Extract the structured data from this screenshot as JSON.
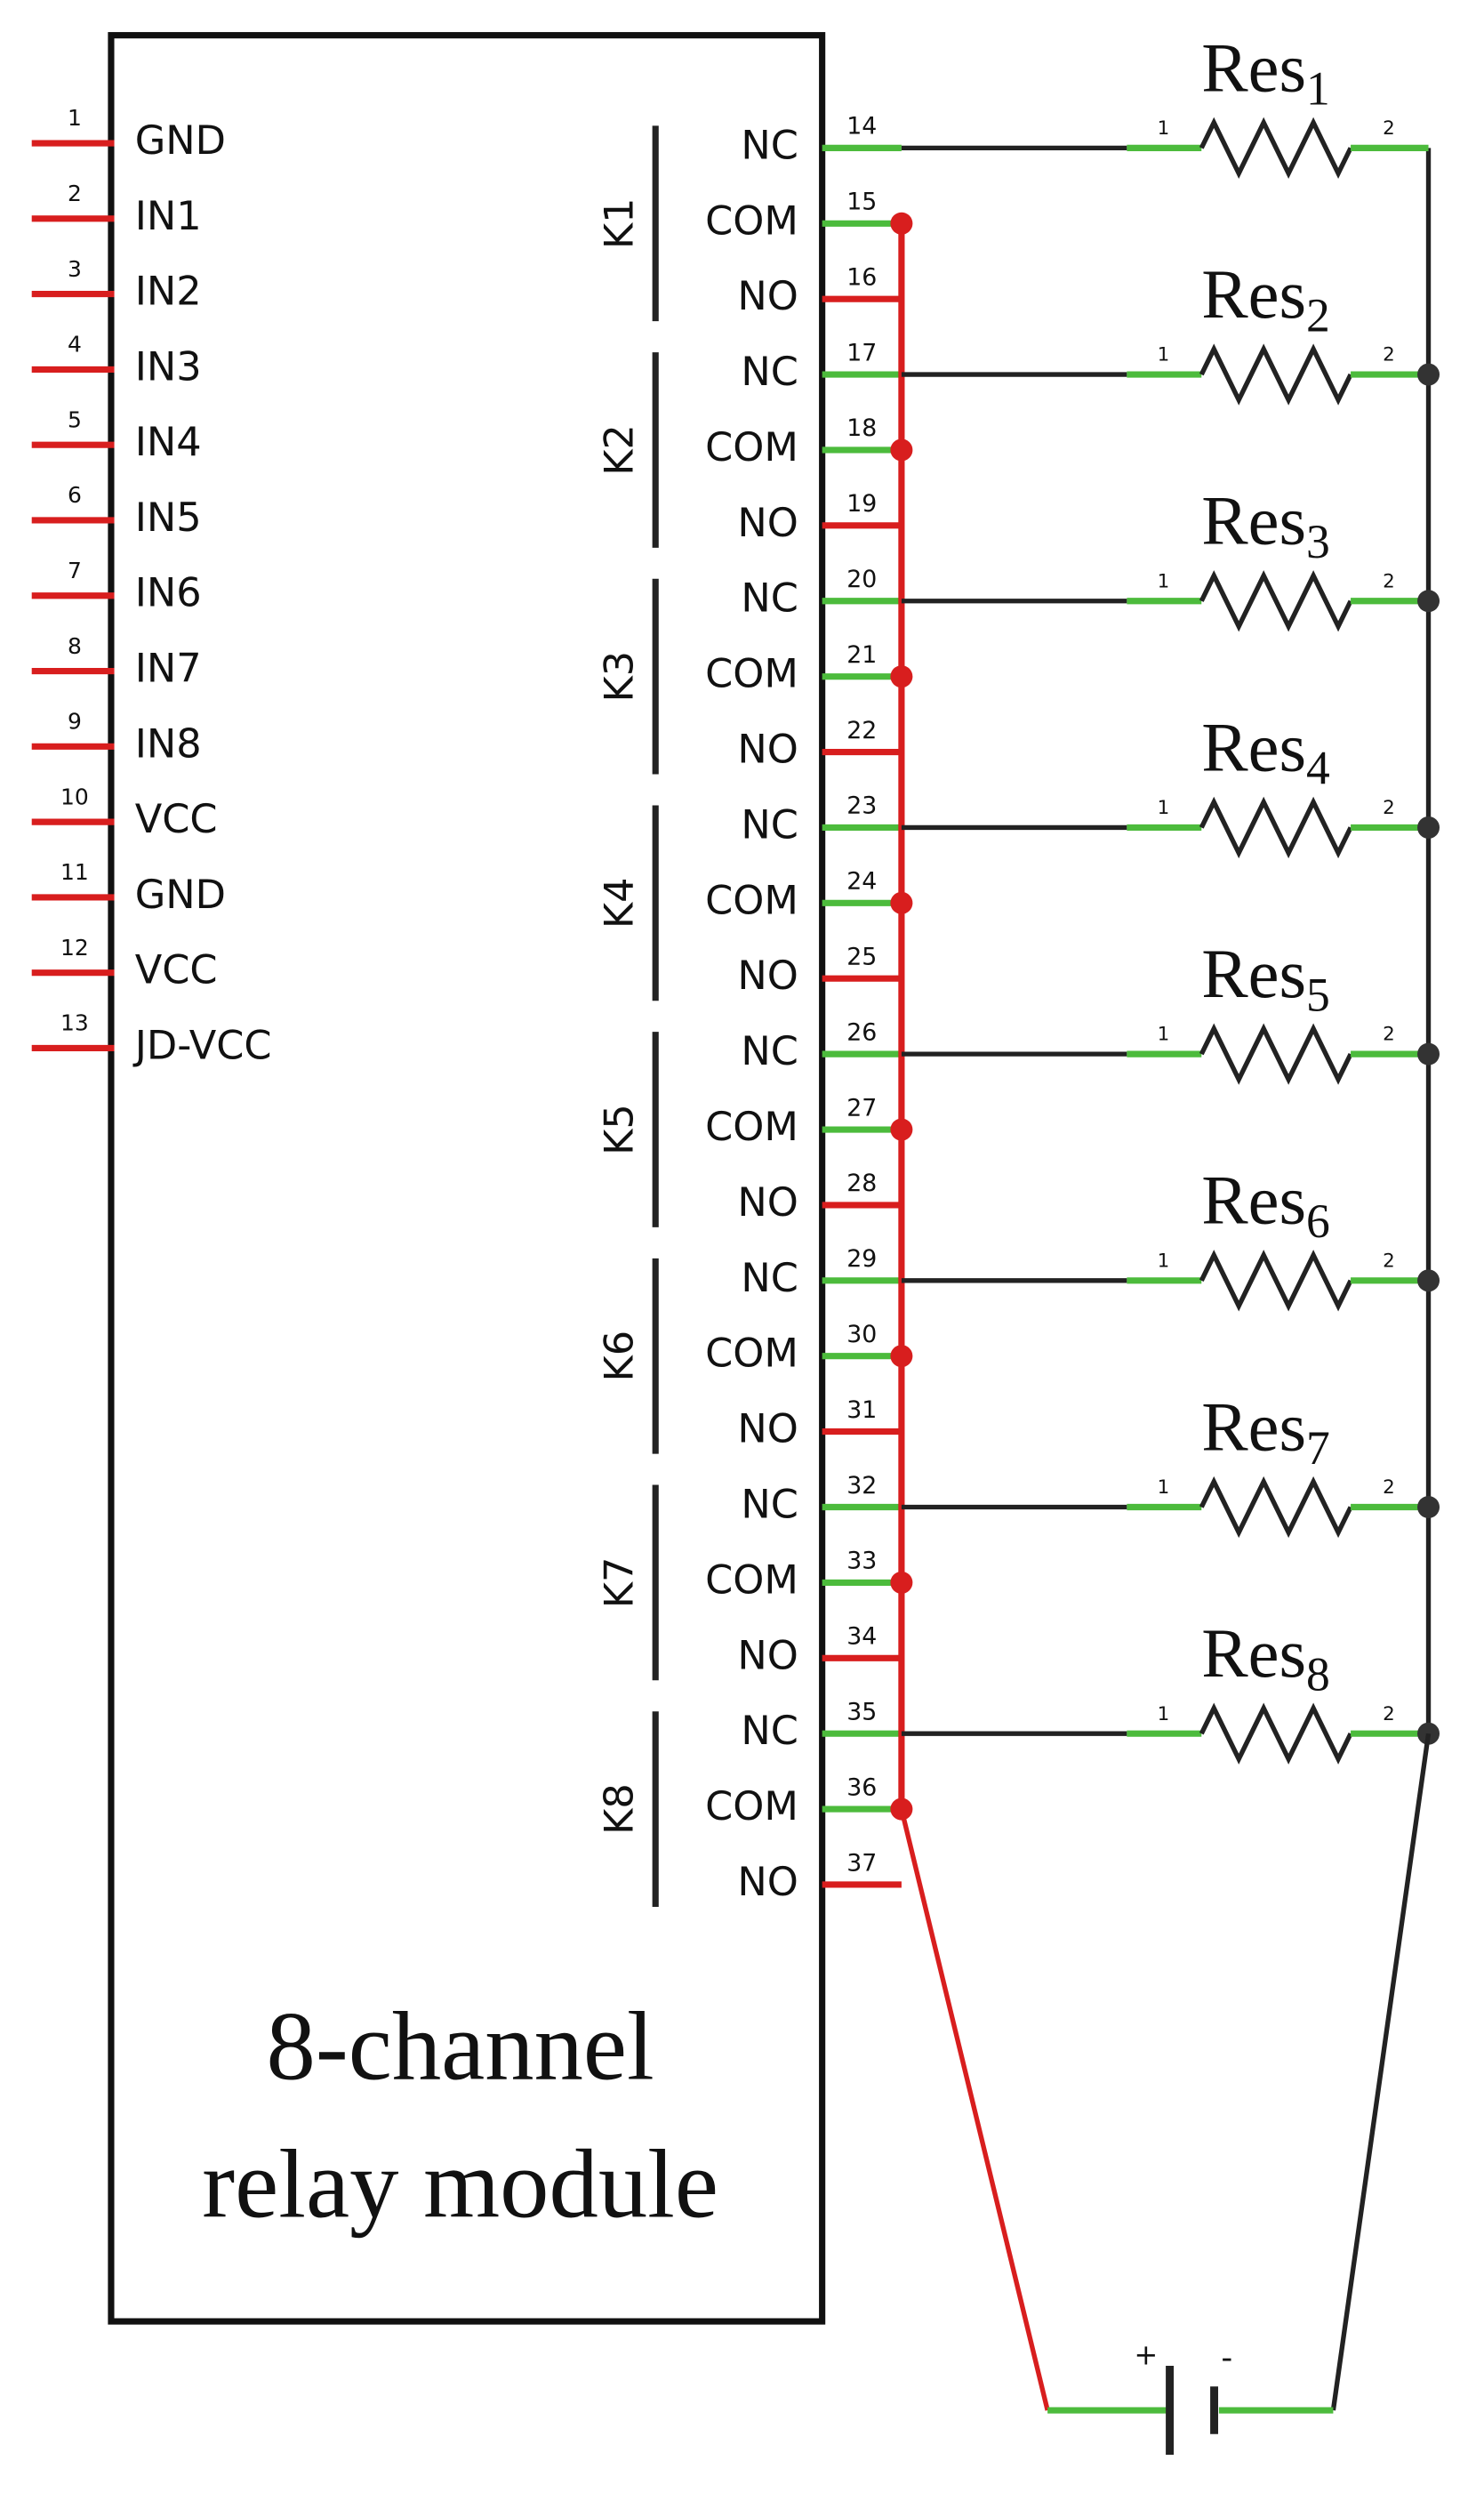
{
  "module": {
    "title_lines": [
      "8-channel",
      "relay module"
    ]
  },
  "left_pins": [
    {
      "number": "1",
      "label": "GND"
    },
    {
      "number": "2",
      "label": "IN1"
    },
    {
      "number": "3",
      "label": "IN2"
    },
    {
      "number": "4",
      "label": "IN3"
    },
    {
      "number": "5",
      "label": "IN4"
    },
    {
      "number": "6",
      "label": "IN5"
    },
    {
      "number": "7",
      "label": "IN6"
    },
    {
      "number": "8",
      "label": "IN7"
    },
    {
      "number": "9",
      "label": "IN8"
    },
    {
      "number": "10",
      "label": "VCC"
    },
    {
      "number": "11",
      "label": "GND"
    },
    {
      "number": "12",
      "label": "VCC"
    },
    {
      "number": "13",
      "label": "JD-VCC"
    }
  ],
  "relays": [
    {
      "label": "K1",
      "pins": [
        {
          "number": "14",
          "label": "NC"
        },
        {
          "number": "15",
          "label": "COM"
        },
        {
          "number": "16",
          "label": "NO"
        }
      ]
    },
    {
      "label": "K2",
      "pins": [
        {
          "number": "17",
          "label": "NC"
        },
        {
          "number": "18",
          "label": "COM"
        },
        {
          "number": "19",
          "label": "NO"
        }
      ]
    },
    {
      "label": "K3",
      "pins": [
        {
          "number": "20",
          "label": "NC"
        },
        {
          "number": "21",
          "label": "COM"
        },
        {
          "number": "22",
          "label": "NO"
        }
      ]
    },
    {
      "label": "K4",
      "pins": [
        {
          "number": "23",
          "label": "NC"
        },
        {
          "number": "24",
          "label": "COM"
        },
        {
          "number": "25",
          "label": "NO"
        }
      ]
    },
    {
      "label": "K5",
      "pins": [
        {
          "number": "26",
          "label": "NC"
        },
        {
          "number": "27",
          "label": "COM"
        },
        {
          "number": "28",
          "label": "NO"
        }
      ]
    },
    {
      "label": "K6",
      "pins": [
        {
          "number": "29",
          "label": "NC"
        },
        {
          "number": "30",
          "label": "COM"
        },
        {
          "number": "31",
          "label": "NO"
        }
      ]
    },
    {
      "label": "K7",
      "pins": [
        {
          "number": "32",
          "label": "NC"
        },
        {
          "number": "33",
          "label": "COM"
        },
        {
          "number": "34",
          "label": "NO"
        }
      ]
    },
    {
      "label": "K8",
      "pins": [
        {
          "number": "35",
          "label": "NC"
        },
        {
          "number": "36",
          "label": "COM"
        },
        {
          "number": "37",
          "label": "NO"
        }
      ]
    }
  ],
  "resistors": [
    {
      "name": "Res",
      "index": "1",
      "pin1": "1",
      "pin2": "2"
    },
    {
      "name": "Res",
      "index": "2",
      "pin1": "1",
      "pin2": "2"
    },
    {
      "name": "Res",
      "index": "3",
      "pin1": "1",
      "pin2": "2"
    },
    {
      "name": "Res",
      "index": "4",
      "pin1": "1",
      "pin2": "2"
    },
    {
      "name": "Res",
      "index": "5",
      "pin1": "1",
      "pin2": "2"
    },
    {
      "name": "Res",
      "index": "6",
      "pin1": "1",
      "pin2": "2"
    },
    {
      "name": "Res",
      "index": "7",
      "pin1": "1",
      "pin2": "2"
    },
    {
      "name": "Res",
      "index": "8",
      "pin1": "1",
      "pin2": "2"
    }
  ],
  "battery": {
    "plus": "+",
    "minus": "-"
  }
}
